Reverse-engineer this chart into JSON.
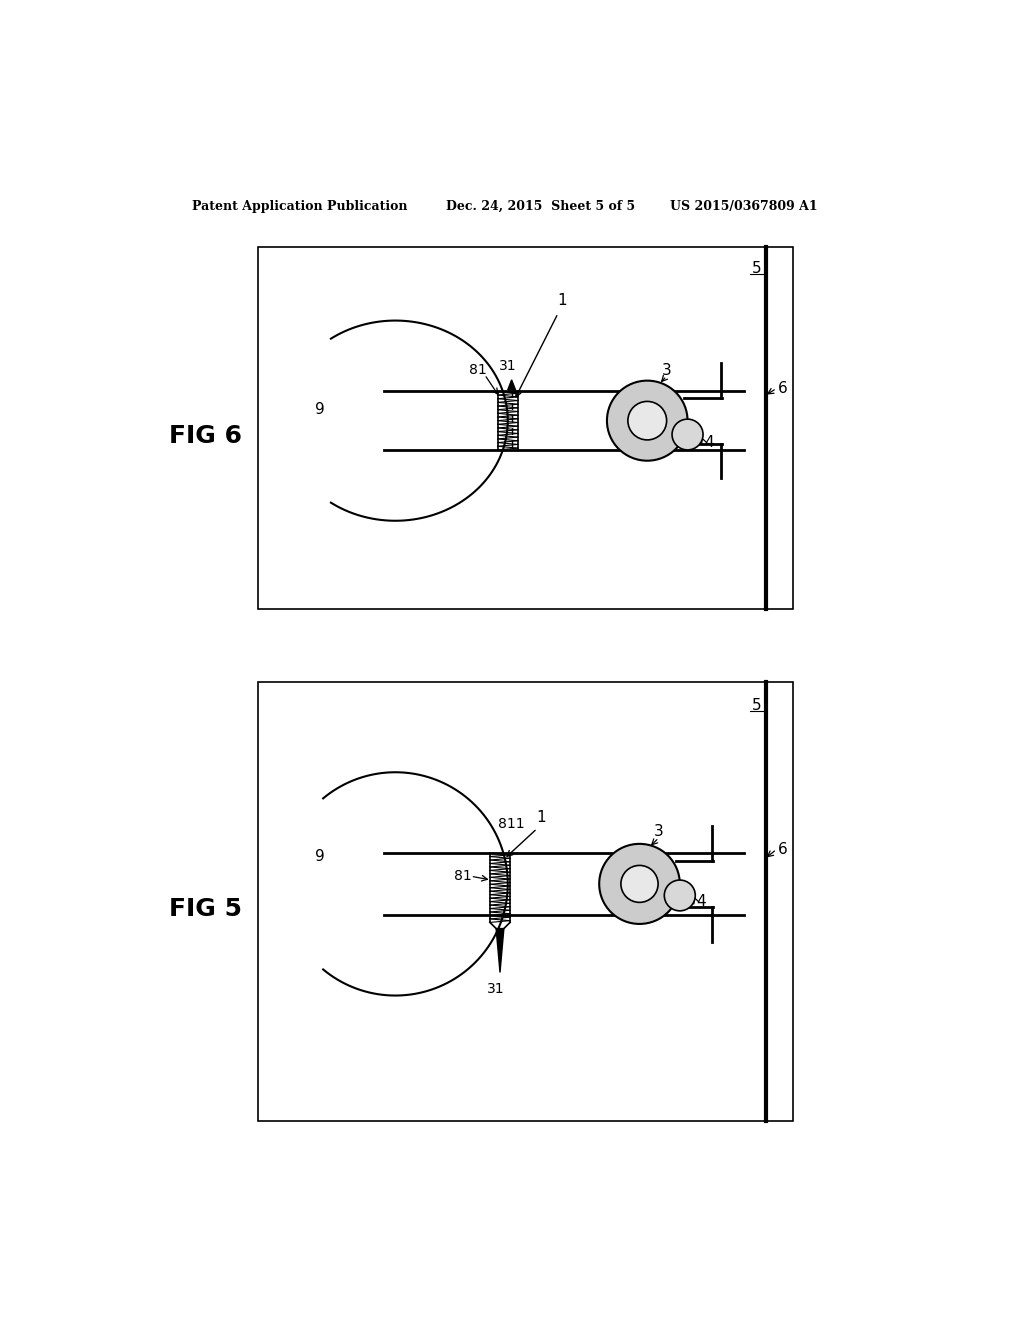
{
  "bg_color": "#ffffff",
  "header_left": "Patent Application Publication",
  "header_mid": "Dec. 24, 2015  Sheet 5 of 5",
  "header_right": "US 2015/0367809 A1"
}
